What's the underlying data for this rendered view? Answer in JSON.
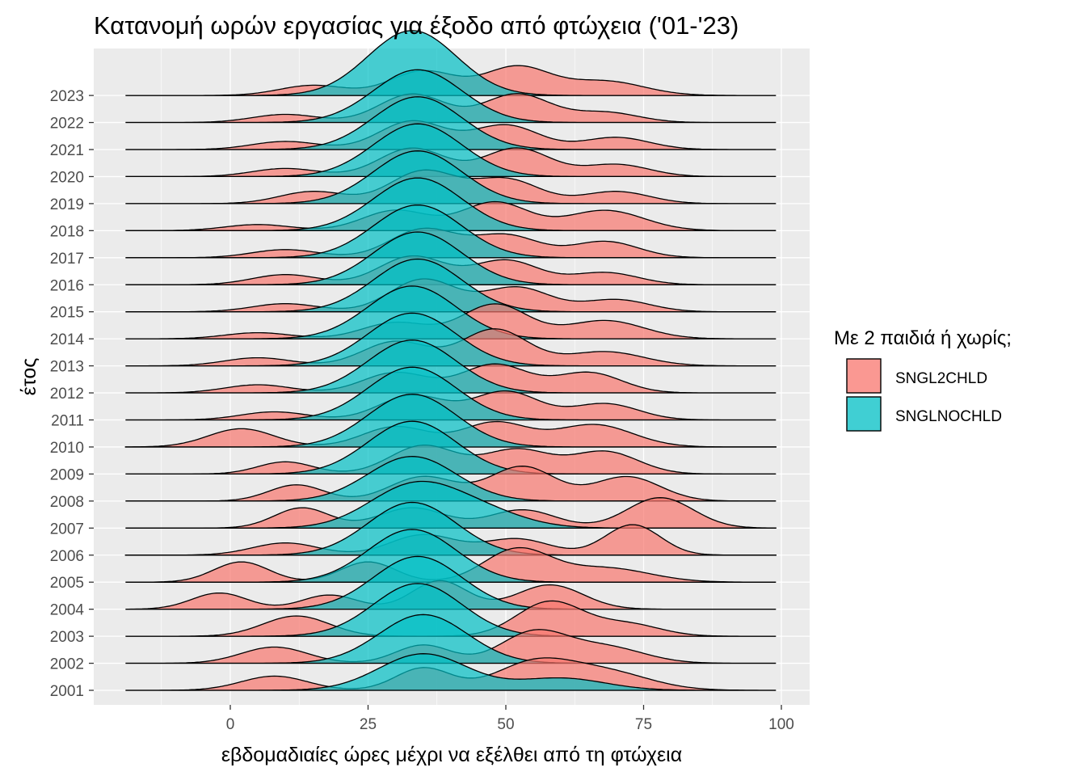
{
  "chart_data": {
    "type": "ridgeline-density",
    "title": "Κατανομή ωρών εργασίας για έξοδο από φτώχεια ('01-'23)",
    "xlabel": "εβδομαδιαίες ώρες μέχρι να εξέλθει από τη φτώχεια",
    "ylabel": "έτος",
    "xlim": [
      -25,
      105
    ],
    "x_ticks": [
      0,
      25,
      50,
      75,
      100
    ],
    "x_range_data": [
      -19,
      99
    ],
    "grid": true,
    "legend": {
      "title": "Με 2 παιδιά ή χωρίς;",
      "position": "right",
      "entries": [
        "SNGL2CHLD",
        "SNGLNOCHLD"
      ]
    },
    "colors": {
      "SNGL2CHLD": "#F8766D",
      "SNGLNOCHLD": "#00BFC4"
    },
    "years": [
      "2001",
      "2002",
      "2003",
      "2004",
      "2005",
      "2006",
      "2007",
      "2008",
      "2009",
      "2010",
      "2011",
      "2012",
      "2013",
      "2014",
      "2015",
      "2016",
      "2017",
      "2018",
      "2019",
      "2020",
      "2021",
      "2022",
      "2023"
    ],
    "series": [
      {
        "name": "SNGL2CHLD",
        "peaks_per_year": [
          [
            [
              8,
              6,
              0.35
            ],
            [
              35,
              5,
              0.55
            ],
            [
              55,
              7,
              0.65
            ],
            [
              68,
              8,
              0.45
            ]
          ],
          [
            [
              8,
              6,
              0.4
            ],
            [
              35,
              5,
              0.45
            ],
            [
              55,
              6,
              0.75
            ],
            [
              68,
              7,
              0.4
            ]
          ],
          [
            [
              12,
              6,
              0.5
            ],
            [
              58,
              6,
              0.85
            ],
            [
              72,
              6,
              0.3
            ]
          ],
          [
            [
              -2,
              5,
              0.4
            ],
            [
              18,
              5,
              0.35
            ],
            [
              38,
              5,
              0.7
            ],
            [
              58,
              6,
              0.6
            ]
          ],
          [
            [
              2,
              5,
              0.5
            ],
            [
              25,
              5,
              0.5
            ],
            [
              52,
              6,
              0.8
            ],
            [
              68,
              8,
              0.35
            ]
          ],
          [
            [
              10,
              6,
              0.3
            ],
            [
              35,
              6,
              0.5
            ],
            [
              52,
              6,
              0.4
            ],
            [
              73,
              5,
              0.75
            ]
          ],
          [
            [
              13,
              5,
              0.5
            ],
            [
              33,
              6,
              0.5
            ],
            [
              53,
              6,
              0.45
            ],
            [
              78,
              6,
              0.75
            ]
          ],
          [
            [
              12,
              5,
              0.4
            ],
            [
              35,
              6,
              0.6
            ],
            [
              53,
              6,
              0.85
            ],
            [
              72,
              6,
              0.6
            ]
          ],
          [
            [
              10,
              5,
              0.3
            ],
            [
              35,
              6,
              0.7
            ],
            [
              52,
              6,
              0.6
            ],
            [
              68,
              6,
              0.55
            ]
          ],
          [
            [
              2,
              6,
              0.45
            ],
            [
              30,
              6,
              0.5
            ],
            [
              48,
              6,
              0.6
            ],
            [
              66,
              7,
              0.55
            ]
          ],
          [
            [
              8,
              6,
              0.2
            ],
            [
              33,
              6,
              0.6
            ],
            [
              50,
              6,
              0.7
            ],
            [
              68,
              6,
              0.4
            ]
          ],
          [
            [
              5,
              6,
              0.2
            ],
            [
              30,
              6,
              0.5
            ],
            [
              48,
              6,
              0.7
            ],
            [
              65,
              6,
              0.5
            ]
          ],
          [
            [
              5,
              6,
              0.2
            ],
            [
              30,
              6,
              0.6
            ],
            [
              48,
              6,
              0.9
            ],
            [
              68,
              7,
              0.35
            ]
          ],
          [
            [
              5,
              6,
              0.15
            ],
            [
              30,
              6,
              0.4
            ],
            [
              48,
              6,
              0.85
            ],
            [
              68,
              7,
              0.45
            ]
          ],
          [
            [
              10,
              6,
              0.2
            ],
            [
              35,
              6,
              0.8
            ],
            [
              52,
              6,
              0.6
            ],
            [
              70,
              6,
              0.3
            ]
          ],
          [
            [
              10,
              6,
              0.25
            ],
            [
              33,
              6,
              0.7
            ],
            [
              50,
              6,
              0.6
            ],
            [
              68,
              6,
              0.3
            ]
          ],
          [
            [
              10,
              6,
              0.2
            ],
            [
              35,
              6,
              0.7
            ],
            [
              50,
              6,
              0.55
            ],
            [
              68,
              6,
              0.4
            ]
          ],
          [
            [
              5,
              6,
              0.15
            ],
            [
              30,
              6,
              0.5
            ],
            [
              48,
              6,
              0.7
            ],
            [
              68,
              7,
              0.5
            ]
          ],
          [
            [
              15,
              6,
              0.3
            ],
            [
              35,
              6,
              0.8
            ],
            [
              50,
              6,
              0.6
            ],
            [
              70,
              6,
              0.3
            ]
          ],
          [
            [
              10,
              6,
              0.2
            ],
            [
              33,
              6,
              0.7
            ],
            [
              52,
              6,
              0.7
            ],
            [
              70,
              6,
              0.3
            ]
          ],
          [
            [
              10,
              6,
              0.2
            ],
            [
              33,
              6,
              0.7
            ],
            [
              50,
              6,
              0.6
            ],
            [
              70,
              6,
              0.3
            ]
          ],
          [
            [
              10,
              6,
              0.2
            ],
            [
              33,
              6,
              0.7
            ],
            [
              52,
              6,
              0.7
            ],
            [
              68,
              6,
              0.25
            ]
          ],
          [
            [
              15,
              6,
              0.25
            ],
            [
              35,
              6,
              0.6
            ],
            [
              52,
              6,
              0.7
            ],
            [
              68,
              7,
              0.35
            ]
          ]
        ]
      },
      {
        "name": "SNGLNOCHLD",
        "peaks_per_year": [
          [
            [
              35,
              8,
              0.9
            ],
            [
              60,
              8,
              0.3
            ]
          ],
          [
            [
              35,
              8,
              1.2
            ]
          ],
          [
            [
              34,
              8,
              1.3
            ]
          ],
          [
            [
              34,
              8,
              1.3
            ]
          ],
          [
            [
              33,
              8,
              1.3
            ]
          ],
          [
            [
              33,
              8,
              1.3
            ]
          ],
          [
            [
              33,
              8,
              1.0
            ],
            [
              45,
              8,
              0.4
            ]
          ],
          [
            [
              33,
              8,
              1.1
            ]
          ],
          [
            [
              33,
              8,
              1.3
            ]
          ],
          [
            [
              33,
              8,
              1.3
            ]
          ],
          [
            [
              33,
              8,
              1.3
            ]
          ],
          [
            [
              33,
              8,
              1.3
            ]
          ],
          [
            [
              33,
              8,
              1.3
            ]
          ],
          [
            [
              33,
              8,
              1.3
            ]
          ],
          [
            [
              34,
              8,
              1.3
            ]
          ],
          [
            [
              34,
              8,
              1.3
            ]
          ],
          [
            [
              34,
              8,
              1.3
            ]
          ],
          [
            [
              34,
              8,
              1.3
            ]
          ],
          [
            [
              34,
              8,
              1.3
            ]
          ],
          [
            [
              34,
              8,
              1.3
            ]
          ],
          [
            [
              34,
              8,
              1.3
            ]
          ],
          [
            [
              34,
              8,
              1.3
            ]
          ],
          [
            [
              33,
              8,
              1.6
            ]
          ]
        ]
      }
    ]
  }
}
